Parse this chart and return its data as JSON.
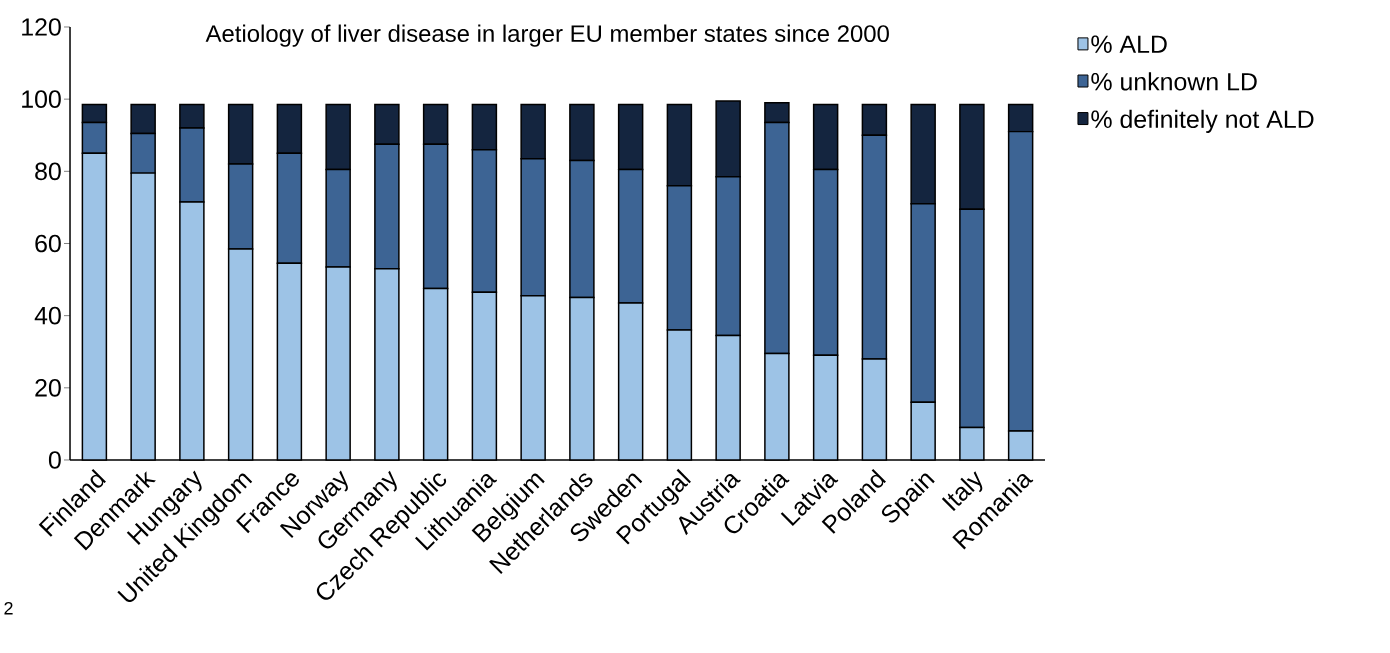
{
  "chart_data": {
    "type": "bar",
    "stacked": true,
    "title": "Aetiology of liver disease in larger EU member states since 2000",
    "categories": [
      "Finland",
      "Denmark",
      "Hungary",
      "United Kingdom",
      "France",
      "Norway",
      "Germany",
      "Czech Republic",
      "Lithuania",
      "Belgium",
      "Netherlands",
      "Sweden",
      "Portugal",
      "Austria",
      "Croatia",
      "Latvia",
      "Poland",
      "Spain",
      "Italy",
      "Romania"
    ],
    "series": [
      {
        "name": "% ALD",
        "color": "#9dc3e6",
        "values": [
          85,
          79.5,
          71.5,
          58.5,
          54.5,
          53.5,
          53,
          47.5,
          46.5,
          45.5,
          45,
          43.5,
          36,
          34.5,
          29.5,
          29,
          28,
          16,
          9,
          8
        ]
      },
      {
        "name": "% unknown LD",
        "color": "#3d6494",
        "values": [
          8.5,
          11,
          20.5,
          23.5,
          30.5,
          27,
          34.5,
          40,
          39.5,
          38,
          38,
          37,
          40,
          44,
          64,
          51.5,
          62,
          55,
          60.5,
          83
        ]
      },
      {
        "name": "% definitely not ALD",
        "color": "#14253f",
        "values": [
          5,
          8,
          6.5,
          16.5,
          13.5,
          18,
          11,
          11,
          12.5,
          15,
          15.5,
          18,
          22.5,
          21,
          5.5,
          18,
          8.5,
          27.5,
          29,
          7.5
        ]
      }
    ],
    "ylim": [
      0,
      120
    ],
    "yticks": [
      0,
      20,
      40,
      60,
      80,
      100,
      120
    ],
    "grid": false,
    "legend": "top right",
    "annotations": [
      "2"
    ]
  }
}
